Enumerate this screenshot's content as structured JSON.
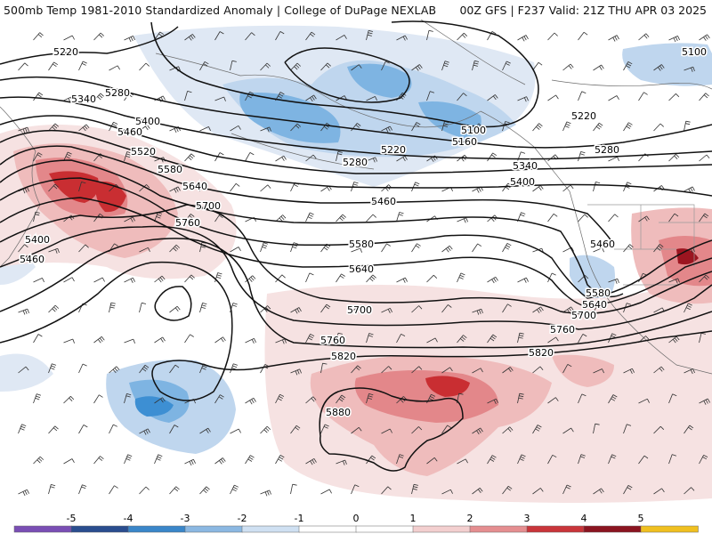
{
  "header": {
    "title_left": "500mb Temp 1981-2010 Standardized Anomaly | College of DuPage NEXLAB",
    "title_right": "00Z GFS | F237 Valid: 21Z THU APR 03 2025"
  },
  "map": {
    "contour_labels": [
      "5100",
      "5100",
      "5160",
      "5220",
      "5220",
      "5220",
      "5280",
      "5280",
      "5280",
      "5340",
      "5340",
      "5400",
      "5400",
      "5400",
      "5460",
      "5460",
      "5460",
      "5460",
      "5520",
      "5580",
      "5580",
      "5580",
      "5640",
      "5640",
      "5640",
      "5700",
      "5700",
      "5700",
      "5760",
      "5760",
      "5760",
      "5820",
      "5820",
      "5880"
    ],
    "anomaly_colors": {
      "neg_strong": "#3d8fd3",
      "neg_mid": "#7eb4e2",
      "neg_light": "#bfd6ee",
      "neg_faint": "#dfe8f4",
      "pos_faint": "#f6e2e2",
      "pos_light": "#efbcbc",
      "pos_mid": "#e3878a",
      "pos_strong": "#c92e32",
      "pos_deep": "#9c1520"
    }
  },
  "colorbar": {
    "labels": [
      "-5",
      "-4",
      "-3",
      "-2",
      "-1",
      "0",
      "1",
      "2",
      "3",
      "4",
      "5"
    ],
    "colors": [
      "#7a4eb5",
      "#2a4d8f",
      "#3a86c9",
      "#8bb8e2",
      "#cfe0f2",
      "#ffffff",
      "#ffffff",
      "#f3cfcf",
      "#e58e90",
      "#c9353a",
      "#8b1420",
      "#f0c020"
    ]
  }
}
